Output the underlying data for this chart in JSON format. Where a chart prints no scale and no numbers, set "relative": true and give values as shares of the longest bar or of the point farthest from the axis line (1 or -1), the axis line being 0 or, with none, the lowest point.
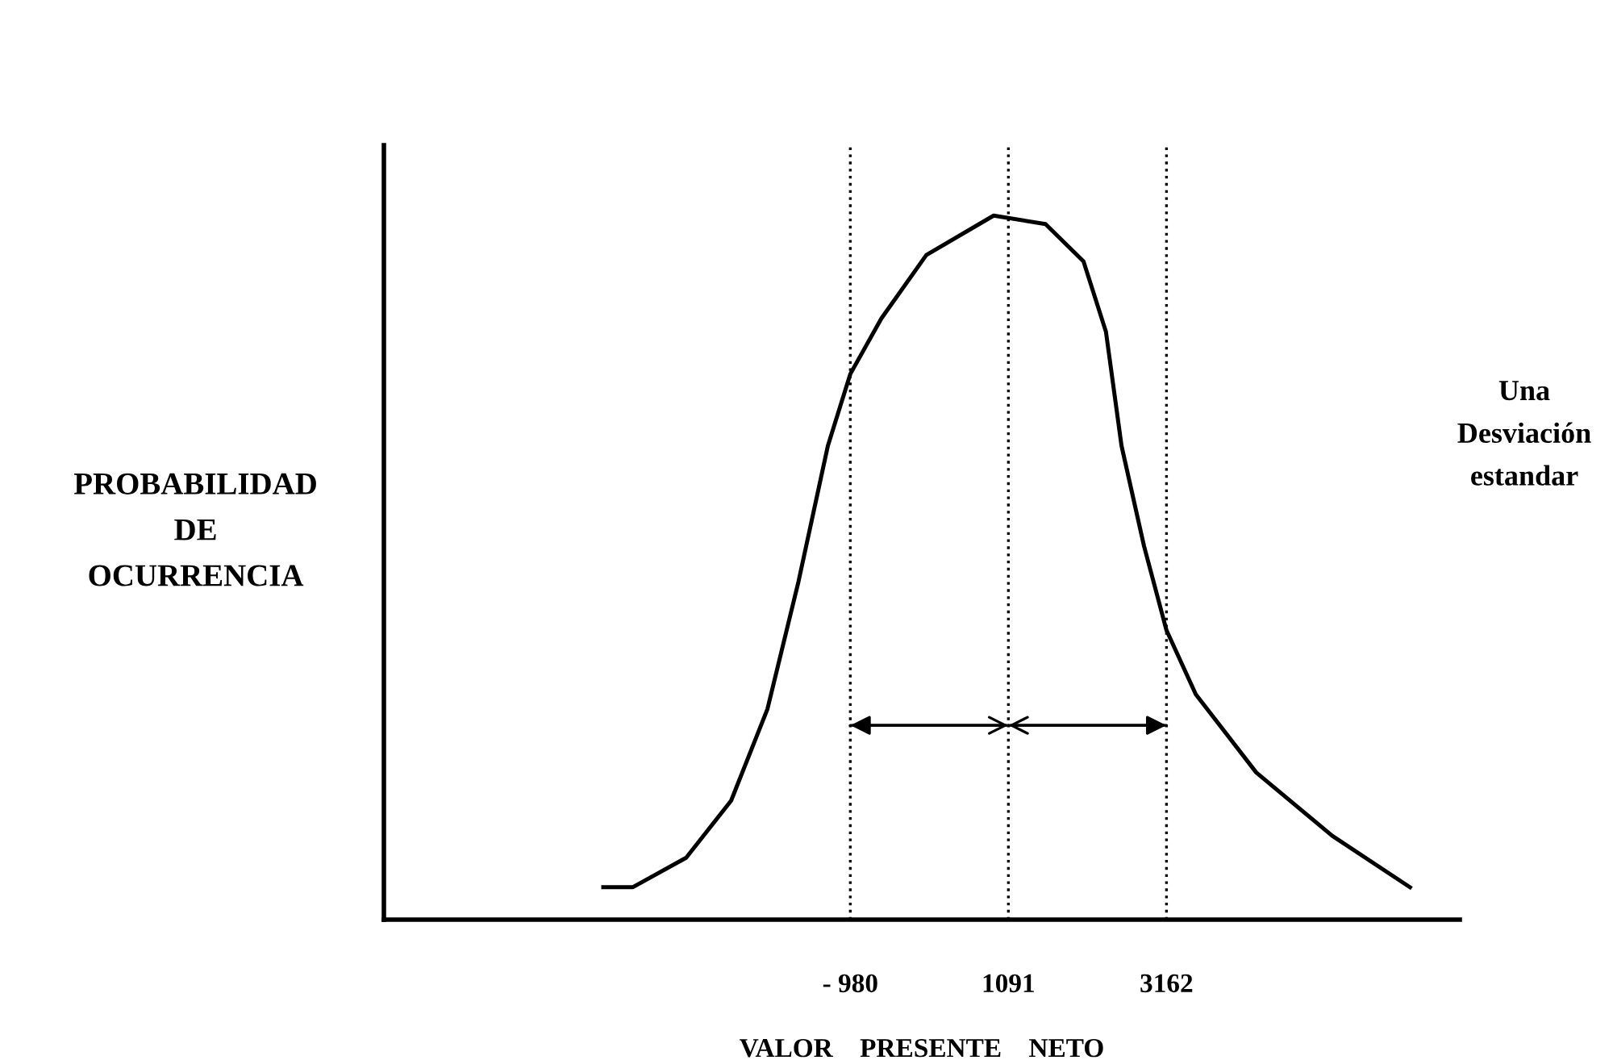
{
  "chart_data": {
    "type": "line",
    "relative": true,
    "xlabel": "VALOR    PRESENTE    NETO",
    "ylabel": "PROBABILIDAD\nDE\nOCURRENCIA",
    "annotations": [
      "Una\nDesviación\nestandar"
    ],
    "x": [
      -4216,
      -3831,
      -3130,
      -2541,
      -2066,
      -1659,
      -1274,
      -980,
      -573,
      16,
      898,
      1577,
      2075,
      2369,
      2573,
      2867,
      3162,
      3546,
      4338,
      5334,
      6352
    ],
    "series": [
      {
        "color": "#000000",
        "values": [
          0.046,
          0.046,
          0.088,
          0.169,
          0.299,
          0.48,
          0.673,
          0.775,
          0.854,
          0.944,
          1,
          0.988,
          0.935,
          0.835,
          0.673,
          0.531,
          0.411,
          0.32,
          0.209,
          0.119,
          0.046
        ]
      }
    ],
    "xlim": [
      -7090,
      7004
    ],
    "xticks": [
      {
        "value": -980,
        "label": "- 980"
      },
      1091,
      3162
    ],
    "ref_lines": [
      {
        "axis": "x",
        "value": -980,
        "color": "#000000",
        "line_style": "dotted"
      },
      {
        "axis": "x",
        "value": 1091,
        "color": "#000000",
        "line_style": "dotted"
      },
      {
        "axis": "x",
        "value": 3162,
        "color": "#000000",
        "line_style": "dotted"
      }
    ],
    "grid": false,
    "marker": "none",
    "line_style": "solid"
  }
}
